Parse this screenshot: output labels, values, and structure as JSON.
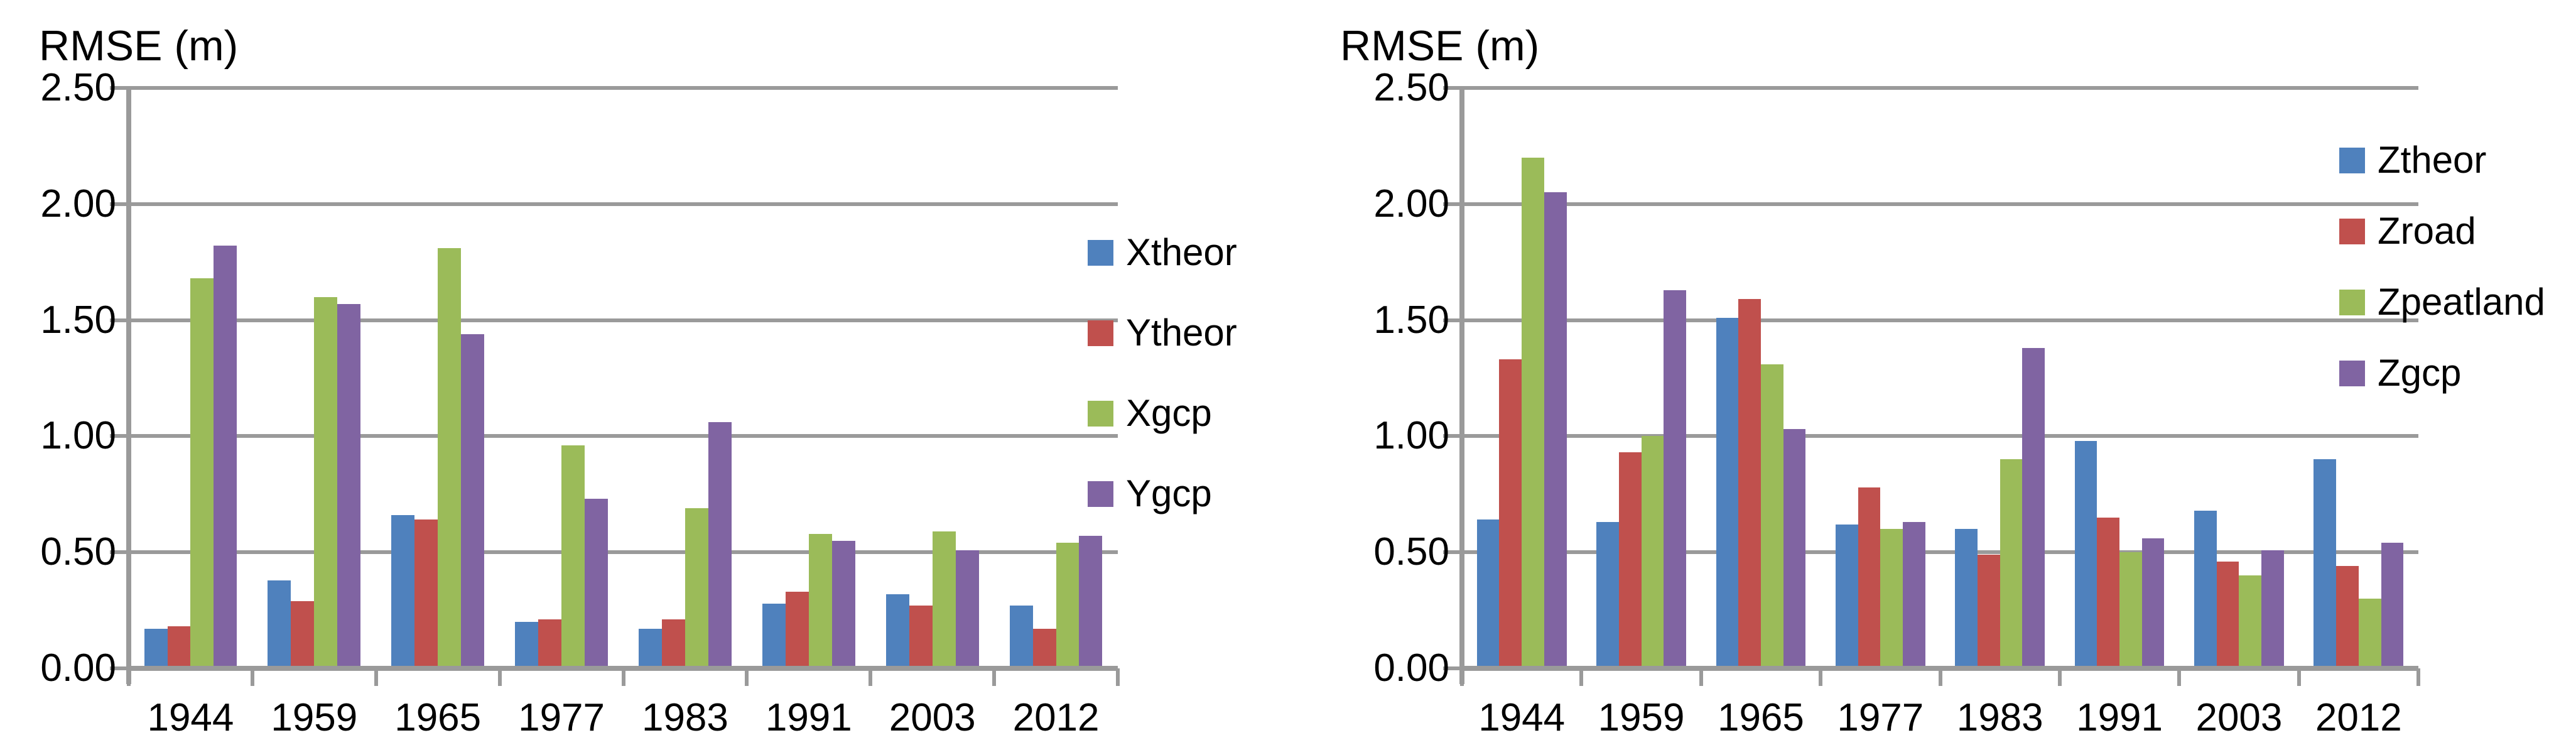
{
  "styles": {
    "grid_color": "#9A9A9A",
    "axis_color": "#9A9A9A",
    "text_color": "#000000",
    "background": "#FFFFFF"
  },
  "chart_data": [
    {
      "type": "bar",
      "title": "RMSE (m)",
      "xlabel": "",
      "ylabel": "RMSE (m)",
      "ylim": [
        0,
        2.5
      ],
      "ytick_step": 0.5,
      "ytick_labels": [
        "0.00",
        "0.50",
        "1.00",
        "1.50",
        "2.00",
        "2.50"
      ],
      "grid": true,
      "legend_position": "right",
      "categories": [
        "1944",
        "1959",
        "1965",
        "1977",
        "1983",
        "1991",
        "2003",
        "2012"
      ],
      "series": [
        {
          "name": "Xtheor",
          "color": "#4F81BD",
          "values": [
            0.17,
            0.38,
            0.66,
            0.2,
            0.17,
            0.28,
            0.32,
            0.27
          ]
        },
        {
          "name": "Ytheor",
          "color": "#C0504D",
          "values": [
            0.18,
            0.29,
            0.64,
            0.21,
            0.21,
            0.33,
            0.27,
            0.17
          ]
        },
        {
          "name": "Xgcp",
          "color": "#9BBB59",
          "values": [
            1.68,
            1.6,
            1.81,
            0.96,
            0.69,
            0.58,
            0.59,
            0.54
          ]
        },
        {
          "name": "Ygcp",
          "color": "#8064A2",
          "values": [
            1.82,
            1.57,
            1.44,
            0.73,
            1.06,
            0.55,
            0.51,
            0.57
          ]
        }
      ]
    },
    {
      "type": "bar",
      "title": "RMSE (m)",
      "xlabel": "",
      "ylabel": "RMSE (m)",
      "ylim": [
        0,
        2.5
      ],
      "ytick_step": 0.5,
      "ytick_labels": [
        "0.00",
        "0.50",
        "1.00",
        "1.50",
        "2.00",
        "2.50"
      ],
      "grid": true,
      "legend_position": "right",
      "categories": [
        "1944",
        "1959",
        "1965",
        "1977",
        "1983",
        "1991",
        "2003",
        "2012"
      ],
      "series": [
        {
          "name": "Ztheor",
          "color": "#4F81BD",
          "values": [
            0.64,
            0.63,
            1.51,
            0.62,
            0.6,
            0.98,
            0.68,
            0.9
          ]
        },
        {
          "name": "Zroad",
          "color": "#C0504D",
          "values": [
            1.33,
            0.93,
            1.59,
            0.78,
            0.49,
            0.65,
            0.46,
            0.44
          ]
        },
        {
          "name": "Zpeatland",
          "color": "#9BBB59",
          "values": [
            2.2,
            1.0,
            1.31,
            0.6,
            0.9,
            0.5,
            0.4,
            0.3
          ]
        },
        {
          "name": "Zgcp",
          "color": "#8064A2",
          "values": [
            2.05,
            1.63,
            1.03,
            0.63,
            1.38,
            0.56,
            0.51,
            0.54
          ]
        }
      ]
    }
  ]
}
